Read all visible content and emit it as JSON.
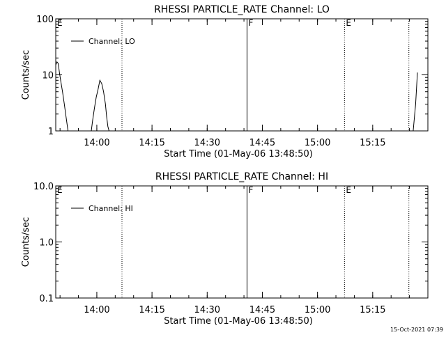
{
  "timestamp": "15-Oct-2021 07:39",
  "chart_data": [
    {
      "type": "line",
      "title": "RHESSI PARTICLE_RATE Channel: LO",
      "xlabel": "Start Time (01-May-06 13:48:50)",
      "ylabel": "Counts/sec",
      "y_scale": "log",
      "ylim": [
        1,
        100
      ],
      "xlim": [
        "13:48:50",
        "15:30:00"
      ],
      "x_ticks": [
        "14:00",
        "14:15",
        "14:30",
        "14:45",
        "15:00",
        "15:15"
      ],
      "y_ticks": [
        "1",
        "10",
        "100"
      ],
      "legend": {
        "position": "top-left",
        "entries": [
          "Channel: LO"
        ]
      },
      "event_markers": [
        {
          "label": "E",
          "time": "13:48:50",
          "style": "dotted"
        },
        {
          "label": "",
          "time": "14:06:50",
          "style": "dotted"
        },
        {
          "label": "F",
          "time": "14:40:50",
          "style": "solid"
        },
        {
          "label": "E",
          "time": "15:07:20",
          "style": "dotted"
        },
        {
          "label": "",
          "time": "15:24:50",
          "style": "dotted"
        }
      ],
      "series": [
        {
          "name": "Channel: LO",
          "segments": [
            {
              "x": [
                "13:48:50",
                "13:49:10",
                "13:49:30",
                "13:49:50",
                "13:50:10",
                "13:50:40",
                "13:51:10",
                "13:51:40",
                "13:52:10"
              ],
              "y": [
                15,
                17,
                16,
                11,
                8,
                5,
                3,
                1.7,
                1
              ]
            },
            {
              "x": [
                "13:58:30",
                "13:58:50",
                "13:59:20",
                "13:59:50",
                "14:00:20",
                "14:00:50",
                "14:01:20",
                "14:01:50",
                "14:02:20",
                "14:02:40",
                "14:03:00",
                "14:03:20"
              ],
              "y": [
                1,
                1.5,
                2.5,
                4,
                5.5,
                8,
                7,
                5,
                3,
                1.8,
                1.2,
                1
              ]
            },
            {
              "x": [
                "15:26:00",
                "15:26:40",
                "15:27:10"
              ],
              "y": [
                1,
                3,
                11
              ]
            }
          ]
        }
      ]
    },
    {
      "type": "line",
      "title": "RHESSI PARTICLE_RATE Channel: HI",
      "xlabel": "Start Time (01-May-06 13:48:50)",
      "ylabel": "Counts/sec",
      "y_scale": "log",
      "ylim": [
        0.1,
        10
      ],
      "xlim": [
        "13:48:50",
        "15:30:00"
      ],
      "x_ticks": [
        "14:00",
        "14:15",
        "14:30",
        "14:45",
        "15:00",
        "15:15"
      ],
      "y_ticks": [
        "0.1",
        "1.0",
        "10.0"
      ],
      "legend": {
        "position": "top-left",
        "entries": [
          "Channel: HI"
        ]
      },
      "event_markers": [
        {
          "label": "E",
          "time": "13:48:50",
          "style": "dotted"
        },
        {
          "label": "",
          "time": "14:06:50",
          "style": "dotted"
        },
        {
          "label": "F",
          "time": "14:40:50",
          "style": "solid"
        },
        {
          "label": "E",
          "time": "15:07:20",
          "style": "dotted"
        },
        {
          "label": "",
          "time": "15:24:50",
          "style": "dotted"
        }
      ],
      "series": [
        {
          "name": "Channel: HI",
          "segments": []
        }
      ]
    }
  ]
}
